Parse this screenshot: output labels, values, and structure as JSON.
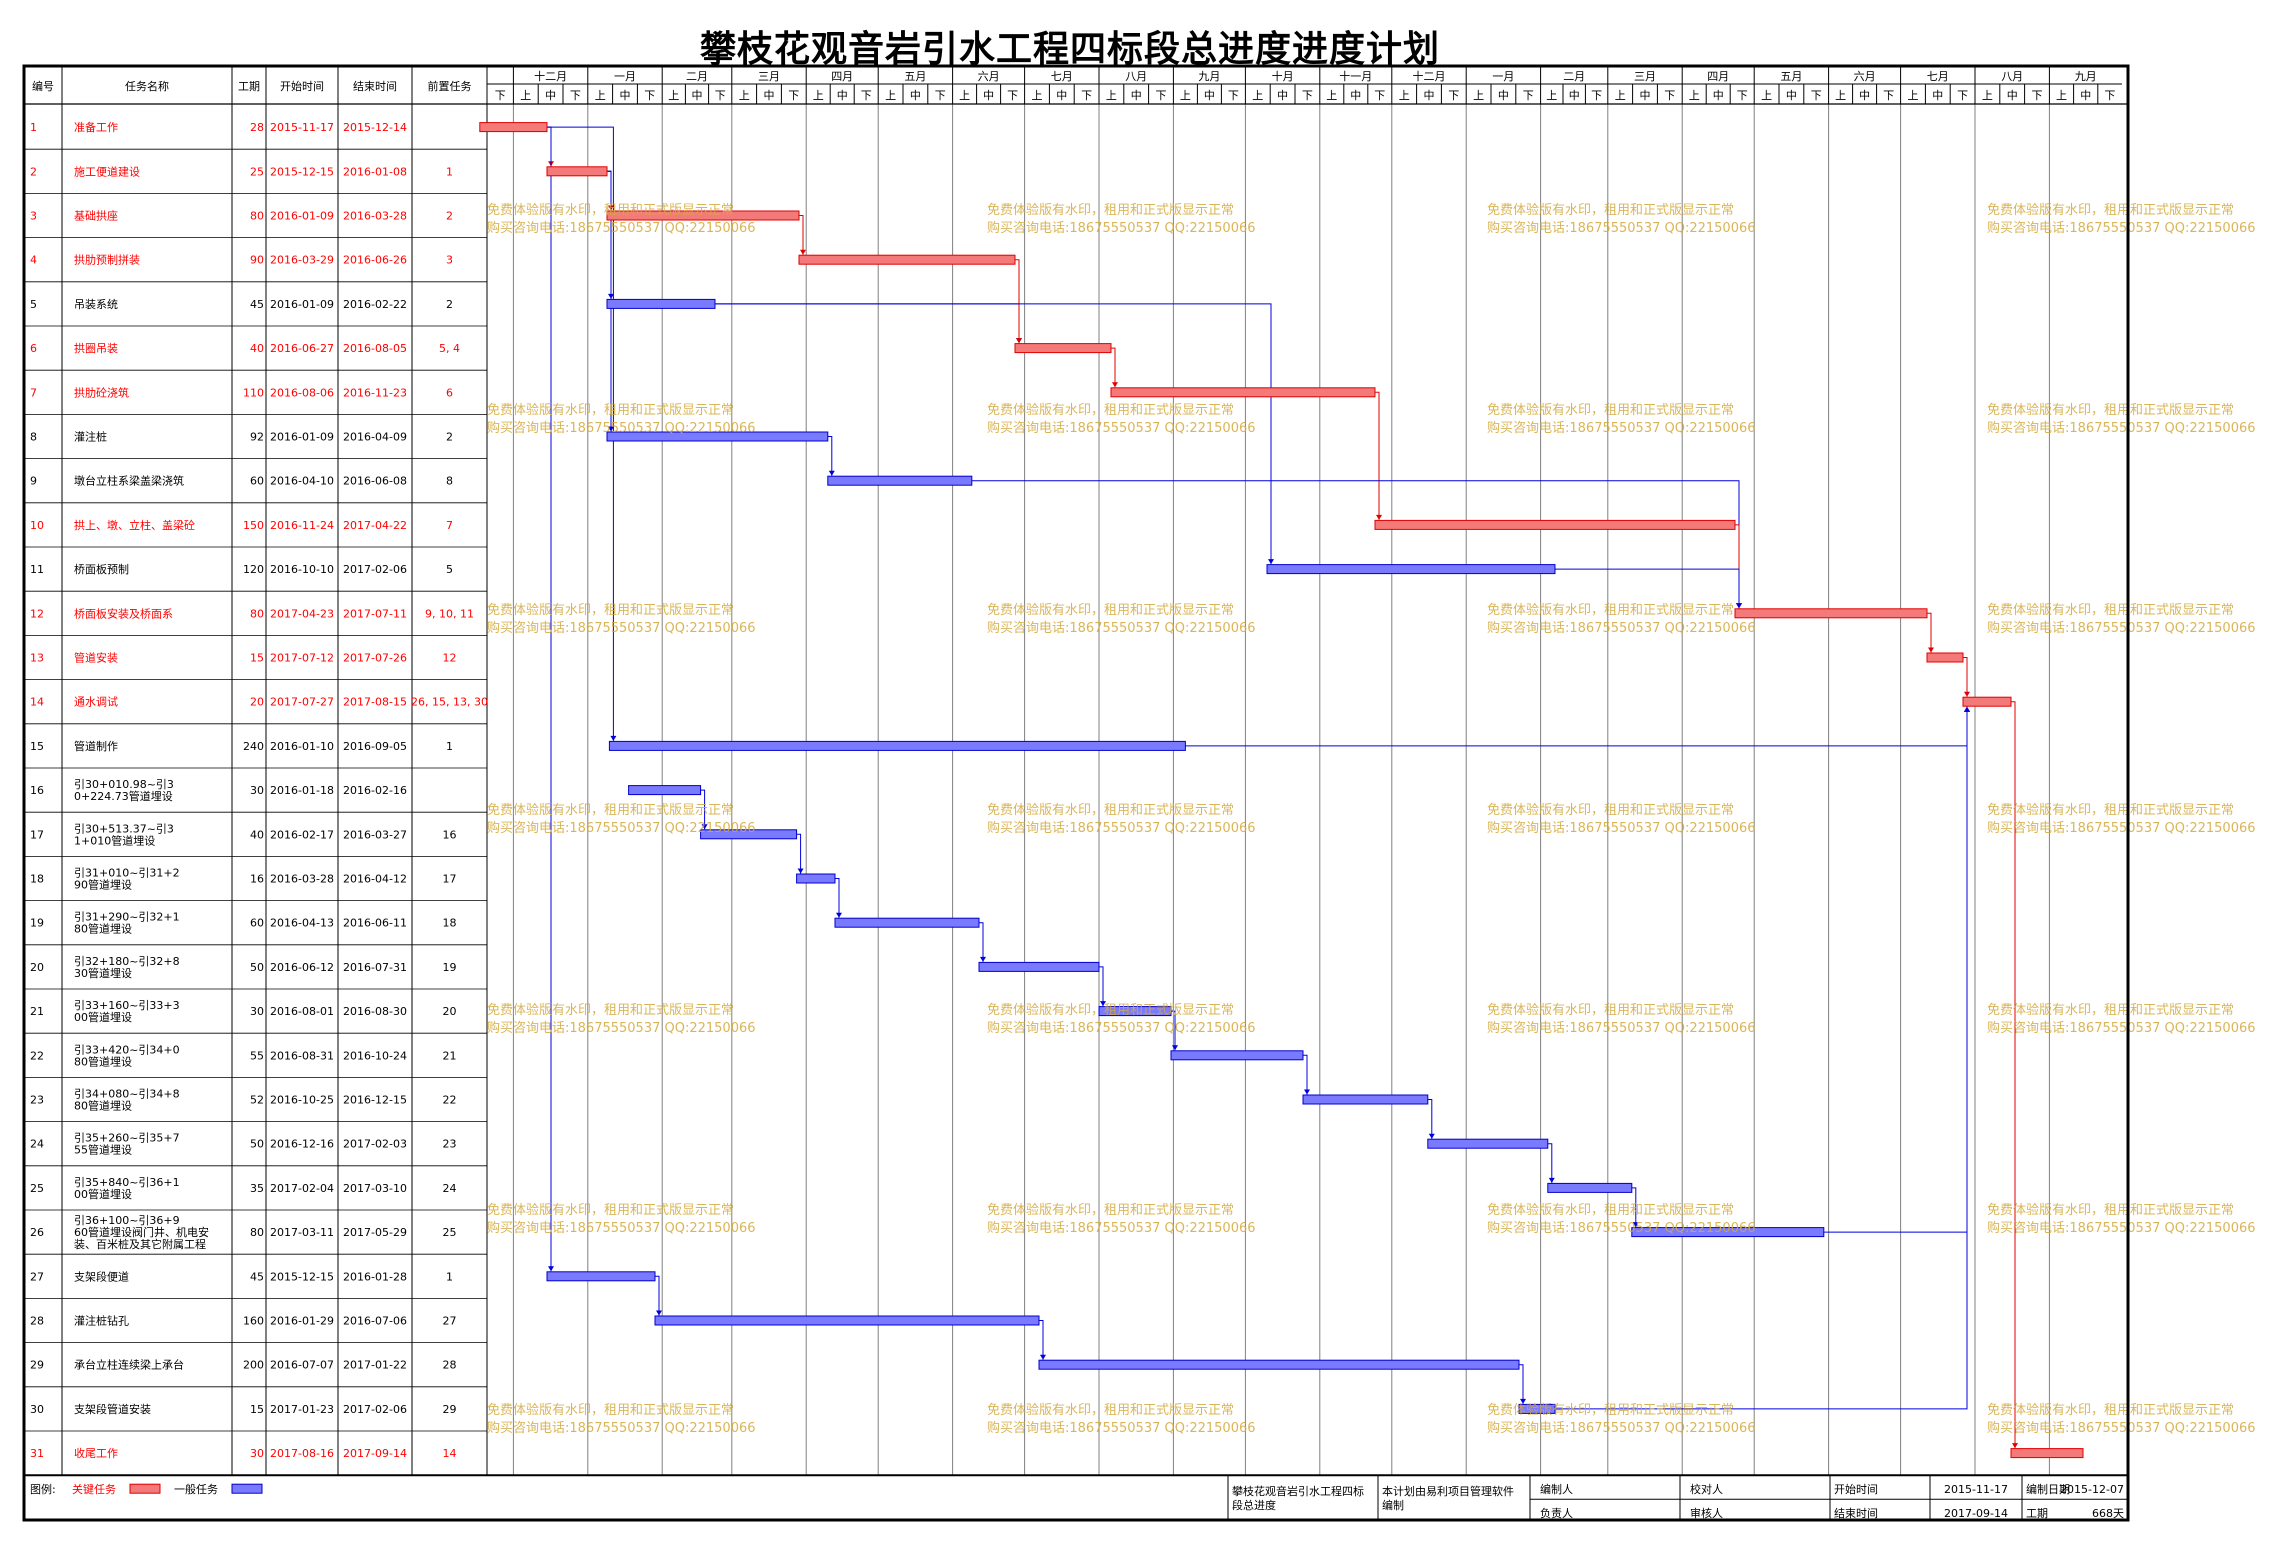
{
  "title": "攀枝花观音岩引水工程四标段总进度进度计划",
  "table_headers": {
    "no": "编号",
    "name": "任务名称",
    "dur": "工期",
    "start": "开始时间",
    "end": "结束时间",
    "pred": "前置任务"
  },
  "timescale": {
    "months": [
      "十二月",
      "一月",
      "二月",
      "三月",
      "四月",
      "五月",
      "六月",
      "七月",
      "八月",
      "九月",
      "十月",
      "十一月",
      "十二月",
      "一月",
      "二月",
      "三月",
      "四月",
      "五月",
      "六月",
      "七月",
      "八月",
      "九月"
    ],
    "tens": [
      "上",
      "中",
      "下"
    ],
    "first_tick_label": "下"
  },
  "colors": {
    "critical": "#f47a7a",
    "critical_border": "#e00000",
    "normal": "#7a7aff",
    "normal_border": "#0000cc",
    "critical_text": "#ff0000",
    "grid": "#808080"
  },
  "tasks": [
    {
      "id": "1",
      "name": "准备工作",
      "dur": "28",
      "start": "2015-11-17",
      "end": "2015-12-14",
      "pred": "",
      "critical": true
    },
    {
      "id": "2",
      "name": "施工便道建设",
      "dur": "25",
      "start": "2015-12-15",
      "end": "2016-01-08",
      "pred": "1",
      "critical": true
    },
    {
      "id": "3",
      "name": "基础拱座",
      "dur": "80",
      "start": "2016-01-09",
      "end": "2016-03-28",
      "pred": "2",
      "critical": true
    },
    {
      "id": "4",
      "name": "拱肋预制拼装",
      "dur": "90",
      "start": "2016-03-29",
      "end": "2016-06-26",
      "pred": "3",
      "critical": true
    },
    {
      "id": "5",
      "name": "吊装系统",
      "dur": "45",
      "start": "2016-01-09",
      "end": "2016-02-22",
      "pred": "2",
      "critical": false
    },
    {
      "id": "6",
      "name": "拱圈吊装",
      "dur": "40",
      "start": "2016-06-27",
      "end": "2016-08-05",
      "pred": "5,4",
      "critical": true
    },
    {
      "id": "7",
      "name": "拱肋砼浇筑",
      "dur": "110",
      "start": "2016-08-06",
      "end": "2016-11-23",
      "pred": "6",
      "critical": true
    },
    {
      "id": "8",
      "name": "灌注桩",
      "dur": "92",
      "start": "2016-01-09",
      "end": "2016-04-09",
      "pred": "2",
      "critical": false
    },
    {
      "id": "9",
      "name": "墩台立柱系梁盖梁浇筑",
      "dur": "60",
      "start": "2016-04-10",
      "end": "2016-06-08",
      "pred": "8",
      "critical": false
    },
    {
      "id": "10",
      "name": "拱上、墩、立柱、盖梁砼",
      "dur": "150",
      "start": "2016-11-24",
      "end": "2017-04-22",
      "pred": "7",
      "critical": true
    },
    {
      "id": "11",
      "name": "桥面板预制",
      "dur": "120",
      "start": "2016-10-10",
      "end": "2017-02-06",
      "pred": "5",
      "critical": false
    },
    {
      "id": "12",
      "name": "桥面板安装及桥面系",
      "dur": "80",
      "start": "2017-04-23",
      "end": "2017-07-11",
      "pred": "9,10,11",
      "critical": true
    },
    {
      "id": "13",
      "name": "管道安装",
      "dur": "15",
      "start": "2017-07-12",
      "end": "2017-07-26",
      "pred": "12",
      "critical": true
    },
    {
      "id": "14",
      "name": "通水调试",
      "dur": "20",
      "start": "2017-07-27",
      "end": "2017-08-15",
      "pred": "26,15,13,30",
      "critical": true
    },
    {
      "id": "15",
      "name": "管道制作",
      "dur": "240",
      "start": "2016-01-10",
      "end": "2016-09-05",
      "pred": "1",
      "critical": false
    },
    {
      "id": "16",
      "name": "引30+010.98~引30+224.73管道埋设",
      "dur": "30",
      "start": "2016-01-18",
      "end": "2016-02-16",
      "pred": "",
      "critical": false
    },
    {
      "id": "17",
      "name": "引30+513.37~引31+010管道埋设",
      "dur": "40",
      "start": "2016-02-17",
      "end": "2016-03-27",
      "pred": "16",
      "critical": false
    },
    {
      "id": "18",
      "name": "引31+010~引31+290管道埋设",
      "dur": "16",
      "start": "2016-03-28",
      "end": "2016-04-12",
      "pred": "17",
      "critical": false
    },
    {
      "id": "19",
      "name": "引31+290~引32+180管道埋设",
      "dur": "60",
      "start": "2016-04-13",
      "end": "2016-06-11",
      "pred": "18",
      "critical": false
    },
    {
      "id": "20",
      "name": "引32+180~引32+830管道埋设",
      "dur": "50",
      "start": "2016-06-12",
      "end": "2016-07-31",
      "pred": "19",
      "critical": false
    },
    {
      "id": "21",
      "name": "引33+160~引33+300管道埋设",
      "dur": "30",
      "start": "2016-08-01",
      "end": "2016-08-30",
      "pred": "20",
      "critical": false
    },
    {
      "id": "22",
      "name": "引33+420~引34+080管道埋设",
      "dur": "55",
      "start": "2016-08-31",
      "end": "2016-10-24",
      "pred": "21",
      "critical": false
    },
    {
      "id": "23",
      "name": "引34+080~引34+880管道埋设",
      "dur": "52",
      "start": "2016-10-25",
      "end": "2016-12-15",
      "pred": "22",
      "critical": false
    },
    {
      "id": "24",
      "name": "引35+260~引35+755管道埋设",
      "dur": "50",
      "start": "2016-12-16",
      "end": "2017-02-03",
      "pred": "23",
      "critical": false
    },
    {
      "id": "25",
      "name": "引35+840~引36+100管道埋设",
      "dur": "35",
      "start": "2017-02-04",
      "end": "2017-03-10",
      "pred": "24",
      "critical": false
    },
    {
      "id": "26",
      "name": "引36+100~引36+960管道埋设阀门井、机电安装、百米桩及其它附属工程",
      "dur": "80",
      "start": "2017-03-11",
      "end": "2017-05-29",
      "pred": "25",
      "critical": false
    },
    {
      "id": "27",
      "name": "支架段便道",
      "dur": "45",
      "start": "2015-12-15",
      "end": "2016-01-28",
      "pred": "1",
      "critical": false
    },
    {
      "id": "28",
      "name": "灌注桩钻孔",
      "dur": "160",
      "start": "2016-01-29",
      "end": "2016-07-06",
      "pred": "27",
      "critical": false
    },
    {
      "id": "29",
      "name": "承台立柱连续梁上承台",
      "dur": "200",
      "start": "2016-07-07",
      "end": "2017-01-22",
      "pred": "28",
      "critical": false
    },
    {
      "id": "30",
      "name": "支架段管道安装",
      "dur": "15",
      "start": "2017-01-23",
      "end": "2017-02-06",
      "pred": "29",
      "critical": false
    },
    {
      "id": "31",
      "name": "收尾工作",
      "dur": "30",
      "start": "2017-08-16",
      "end": "2017-09-14",
      "pred": "14",
      "critical": true
    }
  ],
  "legend": {
    "label": "图例:",
    "critical": "关键任务",
    "normal": "一般任务"
  },
  "watermark": [
    "免费体验版有水印，租用和正式版显示正常",
    "购买咨询电话:18675550537 QQ:22150066"
  ],
  "footer": {
    "project_name": "攀枝花观音岩引水工程四标段总进度",
    "software_note": "本计划由易利项目管理软件编制",
    "compiler_label": "编制人",
    "responsible_label": "负责人",
    "checker_label": "校对人",
    "reviewer_label": "审核人",
    "start_label": "开始时间",
    "start_value": "2015-11-17",
    "finish_label": "结束时间",
    "finish_value": "2017-09-14",
    "date_label": "编制日期",
    "date_value": "2015-12-07",
    "duration_label": "工期",
    "duration_value": "668天"
  }
}
